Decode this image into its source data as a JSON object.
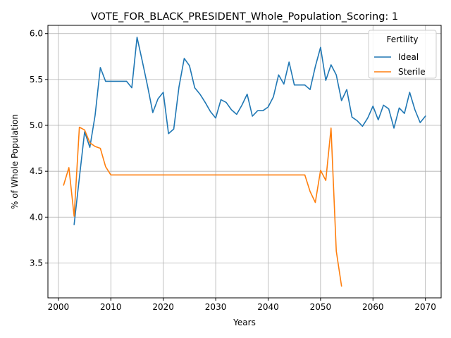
{
  "chart_data": {
    "type": "line",
    "title": "VOTE_FOR_BLACK_PRESIDENT_Whole_Population_Scoring: 1",
    "xlabel": "Years",
    "ylabel": "% of Whole Population",
    "xlim": [
      1998,
      2073
    ],
    "ylim": [
      3.12,
      6.09
    ],
    "xticks": [
      2000,
      2010,
      2020,
      2030,
      2040,
      2050,
      2060,
      2070
    ],
    "yticks": [
      3.5,
      4.0,
      4.5,
      5.0,
      5.5,
      6.0
    ],
    "xtick_labels": [
      "2000",
      "2010",
      "2020",
      "2030",
      "2040",
      "2050",
      "2060",
      "2070"
    ],
    "ytick_labels": [
      "3.5",
      "4.0",
      "4.5",
      "5.0",
      "5.5",
      "6.0"
    ],
    "grid": true,
    "legend": {
      "title": "Fertility",
      "position": "top-right"
    },
    "series": [
      {
        "name": "Ideal",
        "color": "#1f77b4",
        "x": [
          2003,
          2004,
          2005,
          2006,
          2007,
          2008,
          2009,
          2010,
          2011,
          2012,
          2013,
          2014,
          2015,
          2016,
          2017,
          2018,
          2019,
          2020,
          2021,
          2022,
          2023,
          2024,
          2025,
          2026,
          2027,
          2028,
          2029,
          2030,
          2031,
          2032,
          2033,
          2034,
          2035,
          2036,
          2037,
          2038,
          2039,
          2040,
          2041,
          2042,
          2043,
          2044,
          2045,
          2046,
          2047,
          2048,
          2049,
          2050,
          2051,
          2052,
          2053,
          2054,
          2055,
          2056,
          2057,
          2058,
          2059,
          2060,
          2061,
          2062,
          2063,
          2064,
          2065,
          2066,
          2067,
          2068,
          2069,
          2070
        ],
        "y": [
          3.92,
          4.43,
          4.93,
          4.76,
          5.11,
          5.63,
          5.48,
          5.48,
          5.48,
          5.48,
          5.48,
          5.41,
          5.96,
          5.7,
          5.43,
          5.14,
          5.29,
          5.36,
          4.91,
          4.96,
          5.42,
          5.73,
          5.65,
          5.41,
          5.34,
          5.25,
          5.15,
          5.08,
          5.28,
          5.25,
          5.17,
          5.12,
          5.22,
          5.34,
          5.1,
          5.16,
          5.16,
          5.2,
          5.31,
          5.55,
          5.45,
          5.69,
          5.44,
          5.44,
          5.44,
          5.39,
          5.64,
          5.85,
          5.49,
          5.66,
          5.55,
          5.27,
          5.39,
          5.09,
          5.05,
          4.99,
          5.08,
          5.21,
          5.06,
          5.22,
          5.18,
          4.97,
          5.19,
          5.13,
          5.36,
          5.17,
          5.03,
          5.1
        ]
      },
      {
        "name": "Sterile",
        "color": "#ff7f0e",
        "x": [
          2001,
          2002,
          2003,
          2004,
          2005,
          2006,
          2007,
          2008,
          2009,
          2010,
          2011,
          2012,
          2013,
          2014,
          2015,
          2016,
          2017,
          2018,
          2019,
          2020,
          2021,
          2022,
          2023,
          2024,
          2025,
          2026,
          2027,
          2028,
          2029,
          2030,
          2031,
          2032,
          2033,
          2034,
          2035,
          2036,
          2037,
          2038,
          2039,
          2040,
          2041,
          2042,
          2043,
          2044,
          2045,
          2046,
          2047,
          2048,
          2049,
          2050,
          2051,
          2052,
          2053,
          2054
        ],
        "y": [
          4.35,
          4.54,
          4.01,
          4.98,
          4.95,
          4.81,
          4.77,
          4.75,
          4.55,
          4.46,
          4.46,
          4.46,
          4.46,
          4.46,
          4.46,
          4.46,
          4.46,
          4.46,
          4.46,
          4.46,
          4.46,
          4.46,
          4.46,
          4.46,
          4.46,
          4.46,
          4.46,
          4.46,
          4.46,
          4.46,
          4.46,
          4.46,
          4.46,
          4.46,
          4.46,
          4.46,
          4.46,
          4.46,
          4.46,
          4.46,
          4.46,
          4.46,
          4.46,
          4.46,
          4.46,
          4.46,
          4.46,
          4.28,
          4.16,
          4.51,
          4.4,
          4.97,
          3.63,
          3.25
        ]
      }
    ]
  }
}
